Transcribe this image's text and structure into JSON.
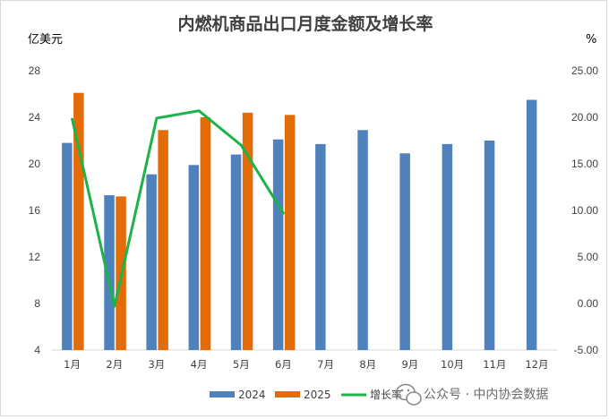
{
  "chart_data": {
    "type": "bar",
    "title": "内燃机商品出口月度金额及增长率",
    "y_left_unit": "亿美元",
    "y_right_unit": "%",
    "categories": [
      "1月",
      "2月",
      "3月",
      "4月",
      "5月",
      "6月",
      "7月",
      "8月",
      "9月",
      "10月",
      "11月",
      "12月"
    ],
    "series": [
      {
        "name": "2024",
        "kind": "bar",
        "axis": "left",
        "color": "#4f81bd",
        "values": [
          21.8,
          17.3,
          19.1,
          19.9,
          20.8,
          22.1,
          21.7,
          22.9,
          20.9,
          21.7,
          22.0,
          25.5
        ]
      },
      {
        "name": "2025",
        "kind": "bar",
        "axis": "left",
        "color": "#e36c09",
        "values": [
          26.1,
          17.2,
          22.9,
          24.0,
          24.4,
          24.2,
          null,
          null,
          null,
          null,
          null,
          null
        ]
      },
      {
        "name": "增长率",
        "kind": "line",
        "axis": "right",
        "color": "#1db34b",
        "values": [
          19.8,
          -0.3,
          19.9,
          20.7,
          17.0,
          9.7,
          null,
          null,
          null,
          null,
          null,
          null
        ]
      }
    ],
    "y_left": {
      "min": 4,
      "max": 28,
      "ticks": [
        "4",
        "8",
        "12",
        "16",
        "20",
        "24",
        "28"
      ]
    },
    "y_right": {
      "min": -5,
      "max": 25,
      "ticks": [
        "-5.00",
        "0.00",
        "5.00",
        "10.00",
        "15.00",
        "20.00",
        "25.00"
      ]
    },
    "grid": false,
    "legend_position": "bottom"
  },
  "watermark": {
    "text": "公众号 · 中内协会数据",
    "icon": "wechat-icon"
  }
}
